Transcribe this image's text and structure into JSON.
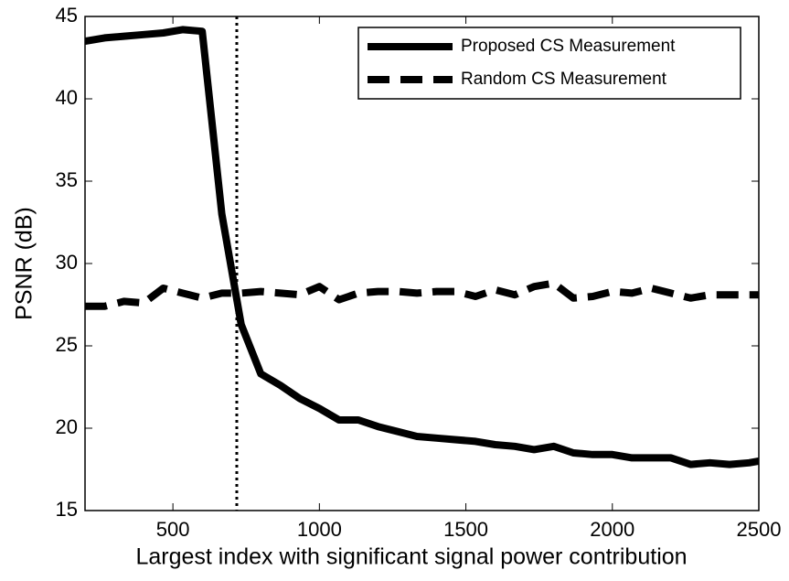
{
  "chart_data": {
    "type": "line",
    "xlabel": "Largest index with significant signal power contribution",
    "ylabel": "PSNR (dB)",
    "x": [
      200,
      267,
      333,
      400,
      467,
      533,
      600,
      667,
      733,
      800,
      867,
      933,
      1000,
      1067,
      1133,
      1200,
      1267,
      1333,
      1400,
      1467,
      1533,
      1600,
      1667,
      1733,
      1800,
      1867,
      1933,
      2000,
      2067,
      2133,
      2200,
      2267,
      2333,
      2400,
      2467,
      2500
    ],
    "series": [
      {
        "name": "Proposed CS Measurement",
        "color": "#000000",
        "dash": false,
        "values": [
          43.5,
          43.7,
          43.8,
          43.9,
          44.0,
          44.2,
          44.1,
          33.0,
          26.3,
          23.3,
          22.6,
          21.8,
          21.2,
          20.5,
          20.5,
          20.1,
          19.8,
          19.5,
          19.4,
          19.3,
          19.2,
          19.0,
          18.9,
          18.7,
          18.9,
          18.5,
          18.4,
          18.4,
          18.2,
          18.2,
          18.2,
          17.8,
          17.9,
          17.8,
          17.9,
          18.0
        ]
      },
      {
        "name": "Random CS Measurement",
        "color": "#000000",
        "dash": true,
        "values": [
          27.4,
          27.4,
          27.7,
          27.6,
          28.5,
          28.2,
          27.9,
          28.2,
          28.2,
          28.3,
          28.2,
          28.1,
          28.6,
          27.8,
          28.2,
          28.3,
          28.3,
          28.2,
          28.3,
          28.3,
          28.0,
          28.4,
          28.1,
          28.6,
          28.8,
          27.9,
          28.0,
          28.3,
          28.2,
          28.5,
          28.2,
          27.9,
          28.1,
          28.1,
          28.1,
          28.1
        ]
      }
    ],
    "vline": 718,
    "xlim": [
      200,
      2500
    ],
    "xticks": [
      500,
      1000,
      1500,
      2000,
      2500
    ],
    "ylim": [
      15,
      45
    ],
    "yticks": [
      15,
      20,
      25,
      30,
      35,
      40,
      45
    ],
    "grid": false,
    "legend": "upper right"
  }
}
